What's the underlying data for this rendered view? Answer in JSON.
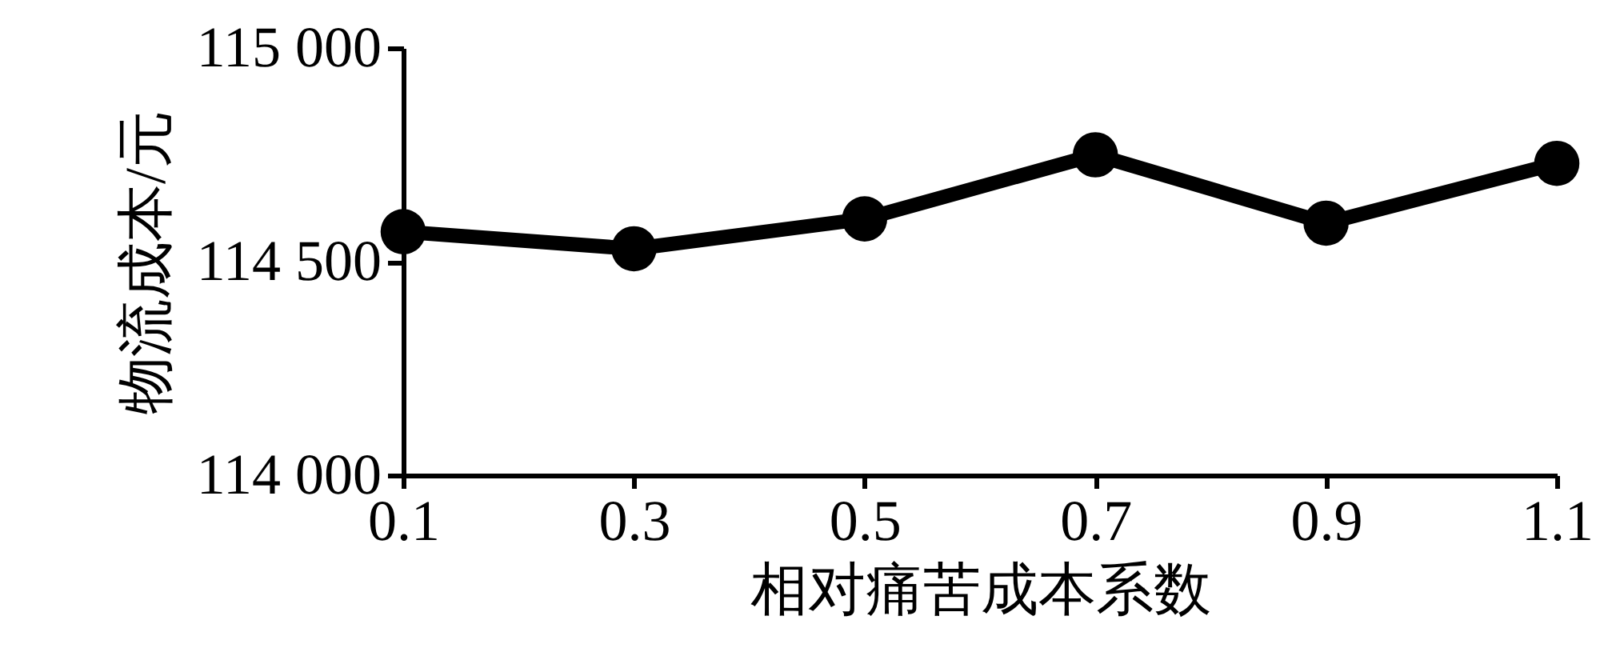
{
  "chart_data": {
    "type": "line",
    "xlabel": "相对痛苦成本系数",
    "ylabel": "物流成本/元",
    "x": [
      0.1,
      0.3,
      0.5,
      0.7,
      0.9,
      1.1
    ],
    "series": [
      {
        "color": "#000000",
        "values": [
          114570,
          114530,
          114600,
          114750,
          114590,
          114730
        ]
      }
    ],
    "xlim": [
      0.1,
      1.1
    ],
    "xticks": [
      0.1,
      0.3,
      0.5,
      0.7,
      0.9,
      1.1
    ],
    "ylim": [
      114000,
      115000
    ],
    "yticks": [
      {
        "value": 114000,
        "label": "114 000"
      },
      {
        "value": 114500,
        "label": "114 500"
      },
      {
        "value": 115000,
        "label": "115 000"
      }
    ],
    "grid": false,
    "marker": "circle",
    "line_style": "solid"
  }
}
